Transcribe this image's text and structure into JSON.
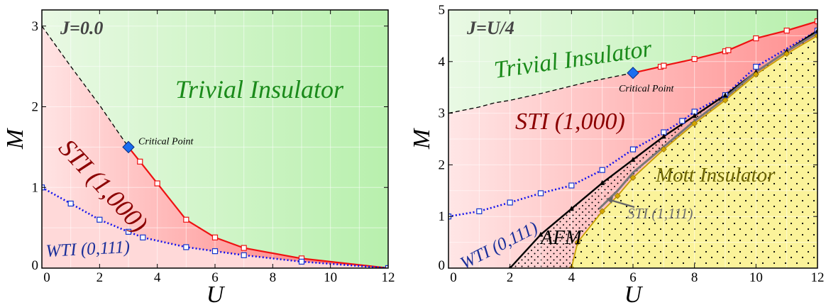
{
  "chart_data": [
    {
      "type": "line",
      "panel_label": "J=0.0",
      "xlabel": "U",
      "ylabel": "M",
      "xlim": [
        0,
        12
      ],
      "ylim": [
        0,
        3.2
      ],
      "xticks": [
        "0",
        "2",
        "4",
        "6",
        "8",
        "10",
        "12"
      ],
      "yticks": [
        "0",
        "1",
        "2",
        "3"
      ],
      "grid": true,
      "regions": [
        {
          "label": "Trivial Insulator",
          "color": "#1a8a1a"
        },
        {
          "label": "STI (1,000)",
          "color": "#8b0000"
        },
        {
          "label": "WTI (0,111)",
          "color": "#1a2f9a"
        }
      ],
      "critical_point": {
        "label": "Critical Point",
        "x": 3.0,
        "y": 1.5
      },
      "series": [
        {
          "style": "dashed black",
          "x": [
            0,
            1,
            2,
            3
          ],
          "y": [
            3.0,
            2.5,
            2.02,
            1.5
          ]
        },
        {
          "style": "solid red, open squares",
          "x": [
            3,
            3.4,
            4,
            5,
            6,
            7,
            9,
            12
          ],
          "y": [
            1.5,
            1.32,
            1.05,
            0.6,
            0.38,
            0.25,
            0.12,
            0.0
          ]
        },
        {
          "style": "dotted blue, open squares",
          "x": [
            0,
            1,
            2,
            3,
            3.5,
            5,
            6,
            7,
            9,
            12
          ],
          "y": [
            1.0,
            0.8,
            0.6,
            0.45,
            0.38,
            0.26,
            0.21,
            0.16,
            0.08,
            0.0
          ]
        }
      ]
    },
    {
      "type": "line",
      "panel_label": "J=U/4",
      "xlabel": "U",
      "ylabel": "M",
      "xlim": [
        0,
        12
      ],
      "ylim": [
        0,
        5
      ],
      "xticks": [
        "0",
        "2",
        "4",
        "6",
        "8",
        "10",
        "12"
      ],
      "yticks": [
        "0",
        "1",
        "2",
        "3",
        "4",
        "5"
      ],
      "grid": true,
      "regions": [
        {
          "label": "Trivial Insulator",
          "color": "#1a8a1a"
        },
        {
          "label": "STI (1,000)",
          "color": "#8b0000"
        },
        {
          "label": "WTI (0,111)",
          "color": "#1a2f9a"
        },
        {
          "label": "AFM",
          "color": "#000000"
        },
        {
          "label": "Mott Insulator",
          "color": "#6b6400"
        },
        {
          "label": "STI (1,111)",
          "color": "#707070"
        }
      ],
      "critical_point": {
        "label": "Critical Point",
        "x": 6.0,
        "y": 3.78
      },
      "series": [
        {
          "style": "dashed black",
          "x": [
            0,
            1,
            1.5,
            2,
            3,
            4.5,
            6
          ],
          "y": [
            3.0,
            3.12,
            3.2,
            3.25,
            3.38,
            3.6,
            3.78
          ]
        },
        {
          "style": "solid red, open squares",
          "x": [
            6,
            6.9,
            7,
            8,
            9,
            9.1,
            10,
            11,
            12
          ],
          "y": [
            3.78,
            3.9,
            3.92,
            4.05,
            4.2,
            4.22,
            4.45,
            4.6,
            4.78
          ]
        },
        {
          "style": "dotted blue, open squares",
          "x": [
            0,
            1,
            2,
            3,
            4,
            5,
            6,
            7,
            7.6,
            8,
            9,
            10,
            12
          ],
          "y": [
            1.0,
            1.1,
            1.27,
            1.45,
            1.6,
            1.9,
            2.3,
            2.63,
            2.85,
            3.03,
            3.35,
            3.9,
            4.6
          ]
        },
        {
          "style": "solid black, filled triangles",
          "x": [
            2,
            3,
            4,
            5,
            6,
            7,
            8,
            9,
            10,
            11,
            12
          ],
          "y": [
            0.0,
            0.65,
            1.15,
            1.65,
            2.1,
            2.55,
            2.95,
            3.35,
            3.8,
            4.2,
            4.6
          ]
        },
        {
          "style": "solid goldenrod, filled diamonds",
          "x": [
            4,
            4.2,
            5,
            5.5,
            6,
            7,
            8,
            9,
            10,
            11,
            12
          ],
          "y": [
            0.0,
            0.5,
            1.1,
            1.4,
            1.75,
            2.3,
            2.8,
            3.25,
            3.75,
            4.15,
            4.5
          ]
        },
        {
          "style": "solid gray",
          "x": [
            4.9,
            5.5,
            6,
            7,
            8,
            9,
            10,
            11,
            12
          ],
          "y": [
            1.15,
            1.5,
            1.85,
            2.35,
            2.85,
            3.3,
            3.8,
            4.2,
            4.55
          ]
        }
      ]
    }
  ]
}
